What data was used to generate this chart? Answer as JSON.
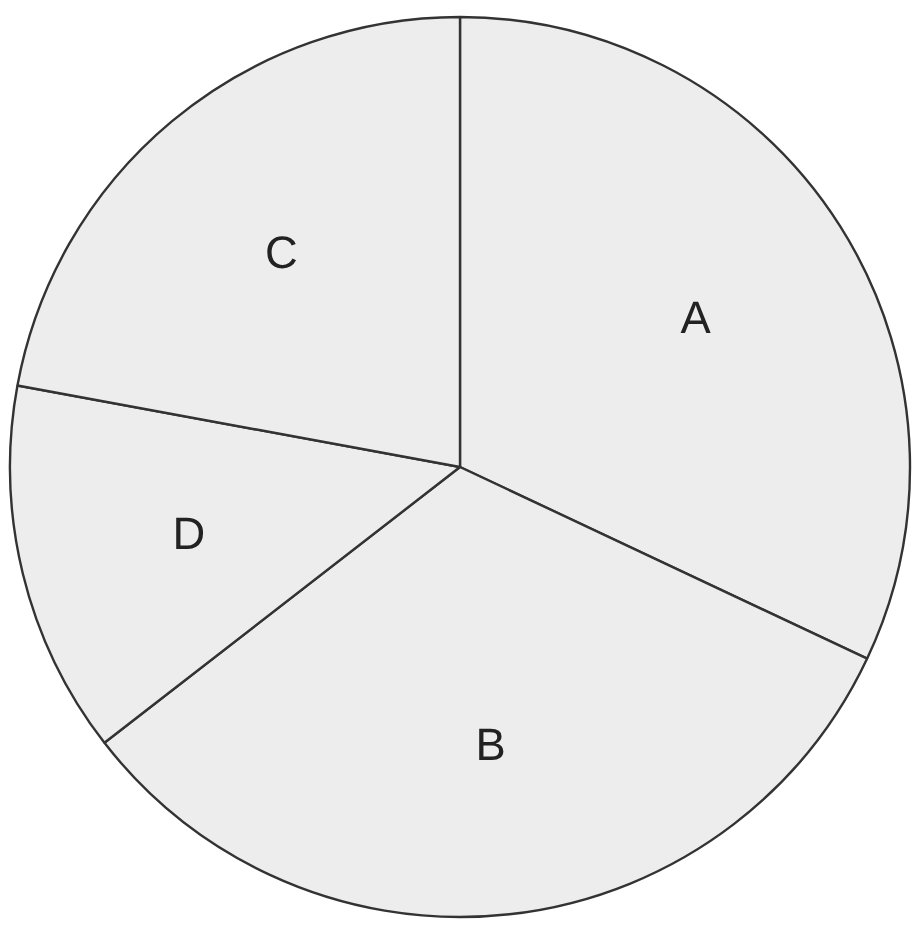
{
  "chart_data": {
    "type": "pie",
    "categories": [
      "A",
      "B",
      "D",
      "C"
    ],
    "values": [
      32.0,
      32.5,
      13.4,
      22.1
    ],
    "colors": [
      "#ededed",
      "#ededed",
      "#ededed",
      "#ededed"
    ]
  }
}
